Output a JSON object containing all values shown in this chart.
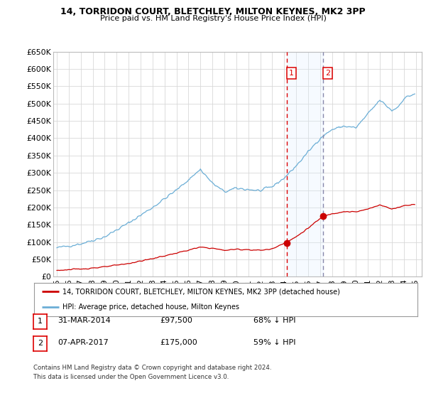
{
  "title1": "14, TORRIDON COURT, BLETCHLEY, MILTON KEYNES, MK2 3PP",
  "title2": "Price paid vs. HM Land Registry's House Price Index (HPI)",
  "hpi_color": "#6baed6",
  "property_color": "#cc0000",
  "shade_color": "#ddeeff",
  "vline1_color": "#dd0000",
  "vline2_color": "#8888aa",
  "ylim": [
    0,
    650000
  ],
  "ytick_step": 50000,
  "sale1_date": 2014.25,
  "sale1_price": 97500,
  "sale2_date": 2017.27,
  "sale2_price": 175000,
  "legend1": "14, TORRIDON COURT, BLETCHLEY, MILTON KEYNES, MK2 3PP (detached house)",
  "legend2": "HPI: Average price, detached house, Milton Keynes",
  "table_rows": [
    {
      "num": "1",
      "date": "31-MAR-2014",
      "price": "£97,500",
      "pct": "68% ↓ HPI"
    },
    {
      "num": "2",
      "date": "07-APR-2017",
      "price": "£175,000",
      "pct": "59% ↓ HPI"
    }
  ],
  "footnote1": "Contains HM Land Registry data © Crown copyright and database right 2024.",
  "footnote2": "This data is licensed under the Open Government Licence v3.0.",
  "bg_color": "#ffffff",
  "grid_color": "#d8d8d8"
}
